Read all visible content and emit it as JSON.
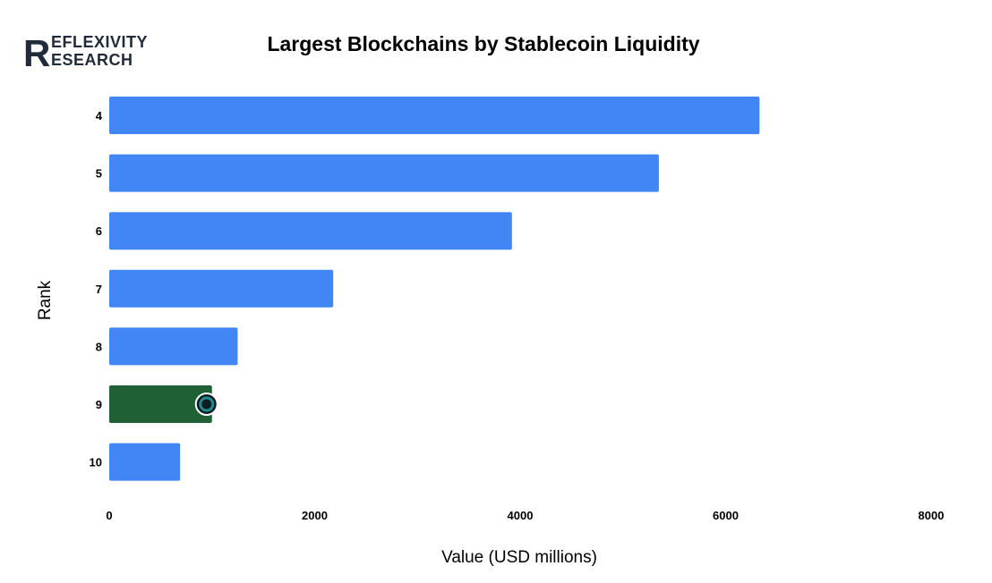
{
  "logo": {
    "line1": "EFLEXIVITY",
    "line2": "ESEARCH",
    "letter": "R"
  },
  "chart_data": {
    "type": "bar",
    "orientation": "horizontal",
    "title": "Largest Blockchains by Stablecoin Liquidity",
    "xlabel": "Value (USD millions)",
    "ylabel": "Rank",
    "categories": [
      "4",
      "5",
      "6",
      "7",
      "8",
      "9",
      "10"
    ],
    "values": [
      6330,
      5350,
      3920,
      2180,
      1250,
      1000,
      690
    ],
    "xlim": [
      0,
      8000
    ],
    "xticks": [
      "0",
      "2000",
      "4000",
      "6000",
      "8000"
    ],
    "grid": false,
    "legend": "none",
    "colors": {
      "bar": "#4285f4",
      "highlight": "#1f6134"
    },
    "highlight_category": "9"
  }
}
